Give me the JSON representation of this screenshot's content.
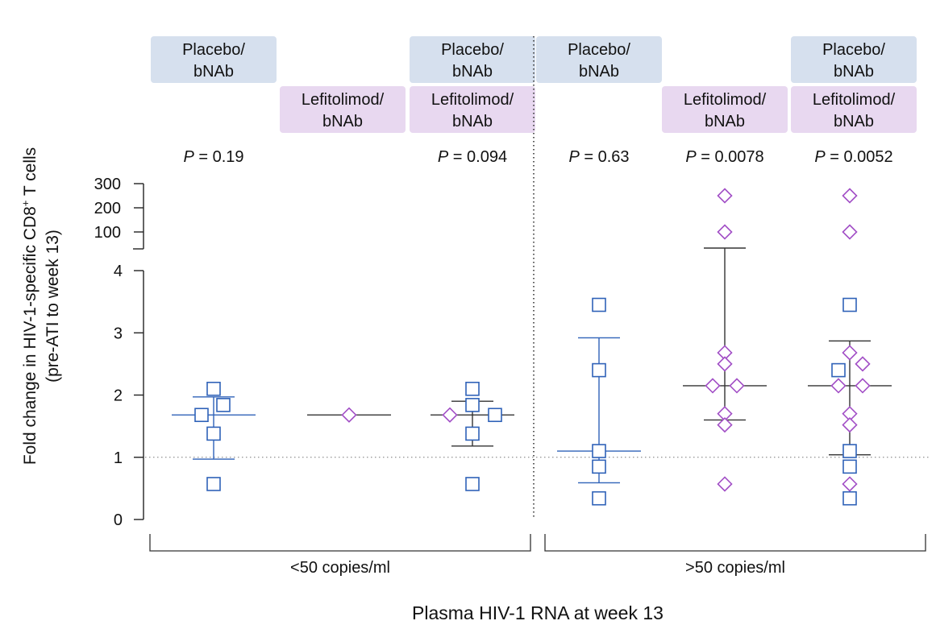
{
  "chart_data": {
    "type": "scatter",
    "ylabel_line1": "Fold change in HIV-1-specific CD8",
    "ylabel_sup": "+",
    "ylabel_line1_end": " T cells",
    "ylabel_line2": "(pre-ATI to week 13)",
    "xlabel": "Plasma HIV-1 RNA at week 13",
    "y_ticks_lower": [
      0,
      1,
      2,
      3,
      4
    ],
    "y_ticks_upper": [
      100,
      200,
      300
    ],
    "y_break": [
      4,
      75
    ],
    "reference_line": 1,
    "legend_labels": {
      "placebo": "Placebo/\nbNAb",
      "lefitolimod": "Lefitolimod/\nbNAb"
    },
    "panels": [
      {
        "name": "<50 copies/ml",
        "groups": [
          {
            "id": "p1",
            "header_top": "placebo",
            "header_bottom": null,
            "p_label": "P = 0.19",
            "median": 1.68,
            "iqr": [
              0.97,
              1.97
            ],
            "points": [
              {
                "series": "placebo",
                "y": 2.1,
                "dx": 0
              },
              {
                "series": "placebo",
                "y": 1.84,
                "dx": 12
              },
              {
                "series": "placebo",
                "y": 1.68,
                "dx": -15
              },
              {
                "series": "placebo",
                "y": 1.38,
                "dx": 0
              },
              {
                "series": "placebo",
                "y": 0.57,
                "dx": 0
              }
            ]
          },
          {
            "id": "p2",
            "header_top": null,
            "header_bottom": "lefitolimod",
            "p_label": "",
            "median": 1.68,
            "iqr": null,
            "points": [
              {
                "series": "lefitolimod",
                "y": 1.68,
                "dx": 0
              }
            ]
          },
          {
            "id": "p3",
            "header_top": "placebo",
            "header_bottom": "lefitolimod",
            "p_label": "P = 0.094",
            "median": 1.68,
            "iqr": [
              1.18,
              1.9
            ],
            "points": [
              {
                "series": "placebo",
                "y": 2.1,
                "dx": 0
              },
              {
                "series": "placebo",
                "y": 1.84,
                "dx": 0
              },
              {
                "series": "placebo",
                "y": 1.68,
                "dx": 28
              },
              {
                "series": "lefitolimod",
                "y": 1.68,
                "dx": -28
              },
              {
                "series": "placebo",
                "y": 1.38,
                "dx": 0
              },
              {
                "series": "placebo",
                "y": 0.57,
                "dx": 0
              }
            ]
          }
        ]
      },
      {
        "name": ">50 copies/ml",
        "groups": [
          {
            "id": "p4",
            "header_top": "placebo",
            "header_bottom": null,
            "p_label": "P = 0.63",
            "median": 1.1,
            "iqr": [
              0.59,
              2.92
            ],
            "points": [
              {
                "series": "placebo",
                "y": 3.45,
                "dx": 0
              },
              {
                "series": "placebo",
                "y": 2.4,
                "dx": 0
              },
              {
                "series": "placebo",
                "y": 1.1,
                "dx": 0
              },
              {
                "series": "placebo",
                "y": 0.85,
                "dx": 0
              },
              {
                "series": "placebo",
                "y": 0.34,
                "dx": 0
              }
            ]
          },
          {
            "id": "p5",
            "header_top": null,
            "header_bottom": "lefitolimod",
            "p_label": "P = 0.0078",
            "median": 2.15,
            "iqr": [
              1.6,
              50
            ],
            "points": [
              {
                "series": "lefitolimod",
                "y": 250,
                "dx": 0
              },
              {
                "series": "lefitolimod",
                "y": 100,
                "dx": 0
              },
              {
                "series": "lefitolimod",
                "y": 2.68,
                "dx": 0
              },
              {
                "series": "lefitolimod",
                "y": 2.5,
                "dx": 0
              },
              {
                "series": "lefitolimod",
                "y": 2.15,
                "dx": -15
              },
              {
                "series": "lefitolimod",
                "y": 2.15,
                "dx": 15
              },
              {
                "series": "lefitolimod",
                "y": 1.7,
                "dx": 0
              },
              {
                "series": "lefitolimod",
                "y": 1.52,
                "dx": 0
              },
              {
                "series": "lefitolimod",
                "y": 0.57,
                "dx": 0
              }
            ]
          },
          {
            "id": "p6",
            "header_top": "placebo",
            "header_bottom": "lefitolimod",
            "p_label": "P = 0.0052",
            "median": 2.15,
            "iqr": [
              1.04,
              2.87
            ],
            "points": [
              {
                "series": "lefitolimod",
                "y": 250,
                "dx": 0
              },
              {
                "series": "lefitolimod",
                "y": 100,
                "dx": 0
              },
              {
                "series": "placebo",
                "y": 3.45,
                "dx": 0
              },
              {
                "series": "lefitolimod",
                "y": 2.68,
                "dx": 0
              },
              {
                "series": "lefitolimod",
                "y": 2.5,
                "dx": 16
              },
              {
                "series": "placebo",
                "y": 2.4,
                "dx": -14
              },
              {
                "series": "lefitolimod",
                "y": 2.15,
                "dx": -14
              },
              {
                "series": "lefitolimod",
                "y": 2.15,
                "dx": 16
              },
              {
                "series": "lefitolimod",
                "y": 1.7,
                "dx": 0
              },
              {
                "series": "lefitolimod",
                "y": 1.52,
                "dx": 0
              },
              {
                "series": "placebo",
                "y": 1.1,
                "dx": 0
              },
              {
                "series": "placebo",
                "y": 0.85,
                "dx": 0
              },
              {
                "series": "lefitolimod",
                "y": 0.57,
                "dx": 0
              },
              {
                "series": "placebo",
                "y": 0.34,
                "dx": 0
              }
            ]
          }
        ]
      }
    ],
    "colors": {
      "placebo_marker": "#2f62b8",
      "lefitolimod_marker": "#a24fc6",
      "placebo_box": "#d6e0ee",
      "lefitolimod_box": "#e8d8f0",
      "axis": "#222222",
      "placebo_whisker": "#2f62b8",
      "lefitolimod_whisker": "#333333"
    }
  }
}
